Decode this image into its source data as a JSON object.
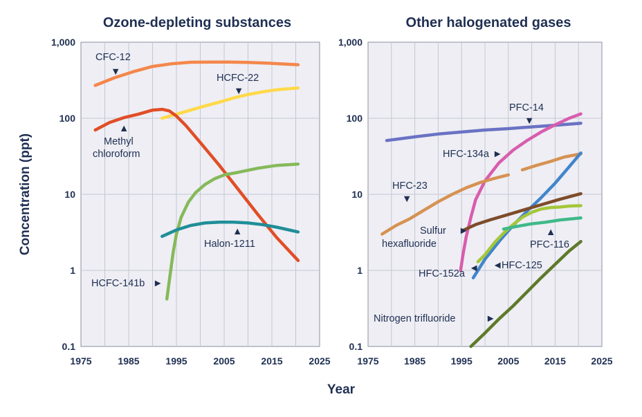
{
  "figure": {
    "ylabel": "Concentration (ppt)",
    "xlabel": "Year"
  },
  "chart_data": [
    {
      "type": "line",
      "title": "Ozone-depleting substances",
      "xlabel": "Year",
      "ylabel": "Concentration (ppt)",
      "yscale": "log",
      "xlim": [
        1975,
        2025
      ],
      "ylim": [
        0.1,
        1000
      ],
      "xticks": [
        "1975",
        "1985",
        "1995",
        "2005",
        "2015",
        "2025"
      ],
      "yticks": [
        "0.1",
        "1",
        "10",
        "100",
        "1,000"
      ],
      "grid": true,
      "series": [
        {
          "name": "CFC-12",
          "color": "#f4874b",
          "x": [
            1978,
            1982,
            1986,
            1990,
            1994,
            1998,
            2002,
            2006,
            2010,
            2014,
            2018,
            2020.5
          ],
          "y": [
            270,
            340,
            410,
            480,
            520,
            545,
            548,
            548,
            543,
            530,
            515,
            505
          ]
        },
        {
          "name": "HCFC-22",
          "color": "#ffd94a",
          "x": [
            1992,
            1995,
            1998,
            2001,
            2004,
            2007,
            2010,
            2013,
            2016,
            2020.5
          ],
          "y": [
            100,
            113,
            128,
            145,
            163,
            185,
            205,
            222,
            237,
            250
          ]
        },
        {
          "name": "Methyl chloroform",
          "color": "#e04e27",
          "x": [
            1978,
            1981,
            1984,
            1987,
            1990,
            1992,
            1993.5,
            1995,
            1997,
            2000,
            2004,
            2008,
            2012,
            2016,
            2020.5
          ],
          "y": [
            70,
            88,
            102,
            113,
            128,
            131,
            125,
            107,
            80,
            48,
            24,
            11.5,
            5.5,
            2.7,
            1.35
          ]
        },
        {
          "name": "HCFC-141b",
          "color": "#86b95a",
          "x": [
            1993,
            1993.6,
            1994.3,
            1995,
            1996,
            1997.5,
            1999,
            2001,
            2003,
            2005,
            2008,
            2012,
            2016,
            2020.5
          ],
          "y": [
            0.42,
            0.8,
            1.7,
            3.0,
            5.0,
            7.9,
            10.5,
            13.5,
            16,
            18,
            19.5,
            22,
            24,
            25
          ]
        },
        {
          "name": "Halon-1211",
          "color": "#1f8e98",
          "x": [
            1992,
            1995,
            1998,
            2001,
            2004,
            2007,
            2010,
            2013,
            2016,
            2020.5
          ],
          "y": [
            2.8,
            3.4,
            3.9,
            4.2,
            4.3,
            4.3,
            4.2,
            4.0,
            3.7,
            3.2
          ]
        }
      ],
      "annotations": [
        {
          "text": "CFC-12"
        },
        {
          "text": "HCFC-22"
        },
        {
          "text": "Methyl"
        },
        {
          "text": "chloroform"
        },
        {
          "text": "Halon-1211"
        },
        {
          "text": "HCFC-141b"
        }
      ]
    },
    {
      "type": "line",
      "title": "Other halogenated gases",
      "xlabel": "Year",
      "ylabel": "Concentration (ppt)",
      "yscale": "log",
      "xlim": [
        1975,
        2025
      ],
      "ylim": [
        0.1,
        1000
      ],
      "xticks": [
        "1975",
        "1985",
        "1995",
        "2005",
        "2015",
        "2025"
      ],
      "yticks": [
        "0.1",
        "1",
        "10",
        "100",
        "1,000"
      ],
      "grid": true,
      "series": [
        {
          "name": "PFC-14",
          "color": "#6a72c4",
          "x": [
            1979,
            1985,
            1990,
            1995,
            2000,
            2005,
            2010,
            2015,
            2020.5
          ],
          "y": [
            51,
            57,
            62,
            66,
            70,
            73,
            77,
            81,
            86
          ]
        },
        {
          "name": "HFC-134a",
          "color": "#d85dae",
          "x": [
            1994.8,
            1995.3,
            1996,
            1997,
            1998,
            2000,
            2003,
            2006,
            2009,
            2012,
            2015,
            2018,
            2020.5
          ],
          "y": [
            1.0,
            1.6,
            2.8,
            5,
            8.5,
            15,
            26,
            38,
            51,
            66,
            82,
            100,
            114
          ]
        },
        {
          "name": "HFC-23",
          "color": "#d69252",
          "x": [
            1978,
            1981,
            1984,
            1987,
            1990,
            1993,
            1996,
            1999,
            2002,
            2005
          ],
          "y": [
            3.0,
            3.9,
            4.8,
            6.2,
            8.0,
            10,
            12.2,
            14.3,
            16.2,
            18
          ]
        },
        {
          "name": "HFC-23 (recent)",
          "color": "#d69252",
          "x": [
            2008,
            2011,
            2014,
            2017,
            2020.5
          ],
          "y": [
            21,
            24,
            27,
            31,
            34
          ]
        },
        {
          "name": "HFC-125",
          "color": "#4185cc",
          "x": [
            1997.5,
            2000,
            2003,
            2006,
            2009,
            2012,
            2015,
            2018,
            2020.5
          ],
          "y": [
            0.8,
            1.4,
            2.4,
            3.9,
            6.0,
            9.0,
            14,
            23,
            35
          ]
        },
        {
          "name": "Sulfur hexafluoride",
          "color": "#7e4c2a",
          "x": [
            1995.5,
            1998,
            2001,
            2004,
            2007,
            2010,
            2013,
            2016,
            2020.5
          ],
          "y": [
            3.4,
            4.0,
            4.6,
            5.2,
            5.9,
            6.7,
            7.6,
            8.6,
            10.2
          ]
        },
        {
          "name": "HFC-152a",
          "color": "#a4c63a",
          "x": [
            1998.5,
            2000,
            2002,
            2004,
            2006,
            2008,
            2010,
            2012,
            2014,
            2016,
            2018,
            2020.5
          ],
          "y": [
            1.3,
            1.6,
            2.3,
            3.1,
            4.0,
            5.0,
            5.8,
            6.4,
            6.7,
            6.8,
            7.0,
            7.1
          ]
        },
        {
          "name": "PFC-116",
          "color": "#3fb98a",
          "x": [
            2004,
            2007,
            2010,
            2013,
            2016,
            2020.5
          ],
          "y": [
            3.5,
            3.8,
            4.1,
            4.3,
            4.6,
            4.9
          ]
        },
        {
          "name": "Nitrogen trifluoride",
          "color": "#5d7a2a",
          "x": [
            1997,
            2000,
            2003,
            2006,
            2009,
            2012,
            2015,
            2018,
            2020.5
          ],
          "y": [
            0.1,
            0.15,
            0.23,
            0.34,
            0.52,
            0.8,
            1.2,
            1.8,
            2.4
          ]
        }
      ],
      "annotations": [
        {
          "text": "PFC-14"
        },
        {
          "text": "HFC-134a"
        },
        {
          "text": "HFC-23"
        },
        {
          "text": "Sulfur"
        },
        {
          "text": "hexafluoride"
        },
        {
          "text": "PFC-116"
        },
        {
          "text": "HFC-152a"
        },
        {
          "text": "HFC-125"
        },
        {
          "text": "Nitrogen trifluoride"
        }
      ]
    }
  ]
}
